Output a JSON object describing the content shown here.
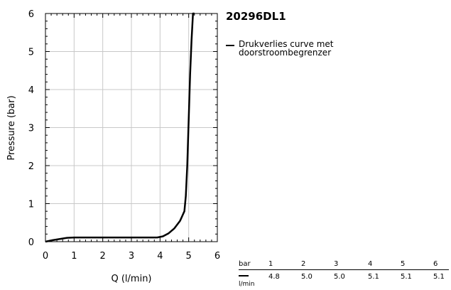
{
  "chart_data": {
    "type": "line",
    "title": "20296DL1",
    "xlabel": "Q (l/min)",
    "ylabel": "Pressure (bar)",
    "xlim": [
      0,
      6
    ],
    "ylim": [
      0,
      6
    ],
    "xticks": [
      0,
      1,
      2,
      3,
      4,
      5,
      6
    ],
    "yticks": [
      0,
      1,
      2,
      3,
      4,
      5,
      6
    ],
    "grid": true,
    "legend_placement": "right",
    "series": [
      {
        "name": "Drukverlies curve met doorstroombegrenzer",
        "color": "#000000",
        "x": [
          0,
          0.25,
          0.5,
          0.75,
          1.0,
          2.0,
          3.0,
          3.9,
          4.1,
          4.3,
          4.5,
          4.7,
          4.85,
          4.9,
          4.95,
          5.0,
          5.05,
          5.1,
          5.15,
          5.2
        ],
        "y": [
          0,
          0.04,
          0.07,
          0.1,
          0.11,
          0.11,
          0.11,
          0.11,
          0.14,
          0.22,
          0.35,
          0.55,
          0.8,
          1.2,
          2.0,
          3.2,
          4.4,
          5.3,
          6.0,
          6.0
        ]
      }
    ]
  },
  "table": {
    "pressure_label": "bar",
    "flow_label": "l/min",
    "pressure": [
      "1",
      "2",
      "3",
      "4",
      "5",
      "6"
    ],
    "flow": [
      "4.8",
      "5.0",
      "5.0",
      "5.1",
      "5.1",
      "5.1"
    ]
  }
}
